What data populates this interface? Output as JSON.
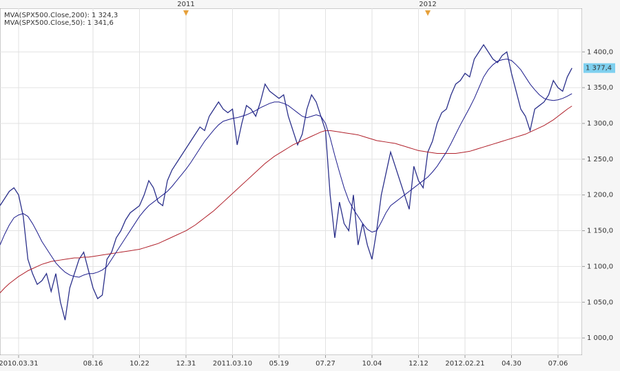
{
  "chart_data": {
    "type": "line",
    "categories": [
      null,
      null,
      null,
      null,
      "2010.03.31",
      null,
      null,
      null,
      null,
      null,
      null,
      null,
      null,
      null,
      null,
      null,
      null,
      null,
      null,
      null,
      "08.16",
      null,
      null,
      null,
      null,
      null,
      null,
      null,
      null,
      null,
      "10.22",
      null,
      null,
      null,
      null,
      null,
      null,
      null,
      null,
      null,
      "12.31",
      null,
      null,
      null,
      null,
      null,
      null,
      null,
      null,
      null,
      "2011.03.10",
      null,
      null,
      null,
      null,
      null,
      null,
      null,
      null,
      null,
      "05.19",
      null,
      null,
      null,
      null,
      null,
      null,
      null,
      null,
      null,
      "07.27",
      null,
      null,
      null,
      null,
      null,
      null,
      null,
      null,
      null,
      "10.04",
      null,
      null,
      null,
      null,
      null,
      null,
      null,
      null,
      null,
      "12.12",
      null,
      null,
      null,
      null,
      null,
      null,
      null,
      null,
      null,
      "2012.02.21",
      null,
      null,
      null,
      null,
      null,
      null,
      null,
      null,
      null,
      "04.30",
      null,
      null,
      null,
      null,
      null,
      null,
      null,
      null,
      null,
      "07.06",
      null,
      null,
      null
    ],
    "top_categories": [
      null,
      null,
      null,
      null,
      null,
      null,
      null,
      null,
      null,
      null,
      null,
      null,
      null,
      null,
      null,
      null,
      null,
      null,
      null,
      null,
      null,
      null,
      null,
      null,
      null,
      null,
      null,
      null,
      null,
      null,
      null,
      null,
      null,
      null,
      null,
      null,
      null,
      null,
      null,
      null,
      "2011",
      null,
      null,
      null,
      null,
      null,
      null,
      null,
      null,
      null,
      null,
      null,
      null,
      null,
      null,
      null,
      null,
      null,
      null,
      null,
      null,
      null,
      null,
      null,
      null,
      null,
      null,
      null,
      null,
      null,
      null,
      null,
      null,
      null,
      null,
      null,
      null,
      null,
      null,
      null,
      null,
      null,
      null,
      null,
      null,
      null,
      null,
      null,
      null,
      null,
      null,
      null,
      "2012",
      null,
      null,
      null,
      null,
      null,
      null,
      null,
      null,
      null,
      null,
      null,
      null,
      null,
      null,
      null,
      null,
      null,
      null,
      null,
      null,
      null,
      null,
      null,
      null,
      null,
      null,
      null,
      null,
      null,
      null,
      null
    ],
    "series": [
      {
        "name": "SPX500",
        "color": "#2a2f8a",
        "last_value_label": "1 377,4",
        "values": [
          1185,
          1195,
          1205,
          1210,
          1200,
          1170,
          1110,
          1090,
          1075,
          1080,
          1090,
          1065,
          1090,
          1050,
          1025,
          1070,
          1090,
          1110,
          1120,
          1095,
          1070,
          1055,
          1060,
          1110,
          1120,
          1140,
          1150,
          1165,
          1175,
          1180,
          1185,
          1200,
          1220,
          1210,
          1190,
          1185,
          1220,
          1235,
          1245,
          1255,
          1265,
          1275,
          1285,
          1295,
          1290,
          1310,
          1320,
          1330,
          1320,
          1315,
          1320,
          1270,
          1300,
          1325,
          1320,
          1310,
          1330,
          1355,
          1345,
          1340,
          1335,
          1340,
          1310,
          1290,
          1270,
          1285,
          1320,
          1340,
          1330,
          1310,
          1290,
          1200,
          1140,
          1190,
          1160,
          1150,
          1200,
          1130,
          1160,
          1130,
          1110,
          1150,
          1200,
          1230,
          1260,
          1240,
          1220,
          1200,
          1180,
          1240,
          1220,
          1210,
          1260,
          1275,
          1300,
          1315,
          1320,
          1340,
          1355,
          1360,
          1370,
          1365,
          1390,
          1400,
          1410,
          1400,
          1390,
          1385,
          1395,
          1400,
          1370,
          1345,
          1320,
          1310,
          1290,
          1320,
          1325,
          1330,
          1340,
          1360,
          1350,
          1345,
          1365,
          1377.4
        ]
      },
      {
        "name": "MVA(SPX500.Close,200): 1 324,3",
        "color": "#b0202a",
        "values": [
          1063,
          1070,
          1076,
          1081,
          1086,
          1090,
          1094,
          1097,
          1100,
          1103,
          1105,
          1107,
          1108,
          1109,
          1110,
          1111,
          1112,
          1112,
          1113,
          1113,
          1114,
          1115,
          1116,
          1117,
          1118,
          1119,
          1120,
          1121,
          1122,
          1123,
          1124,
          1126,
          1128,
          1130,
          1132,
          1135,
          1138,
          1141,
          1144,
          1147,
          1150,
          1154,
          1158,
          1163,
          1168,
          1173,
          1178,
          1184,
          1190,
          1196,
          1202,
          1208,
          1214,
          1220,
          1226,
          1232,
          1238,
          1244,
          1249,
          1254,
          1258,
          1262,
          1266,
          1270,
          1273,
          1276,
          1279,
          1282,
          1285,
          1288,
          1290,
          1290,
          1289,
          1288,
          1287,
          1286,
          1285,
          1284,
          1282,
          1280,
          1278,
          1276,
          1275,
          1274,
          1273,
          1272,
          1270,
          1268,
          1266,
          1264,
          1262,
          1261,
          1260,
          1259,
          1258,
          1258,
          1258,
          1258,
          1258,
          1259,
          1260,
          1261,
          1263,
          1265,
          1267,
          1269,
          1271,
          1273,
          1275,
          1277,
          1279,
          1281,
          1283,
          1285,
          1288,
          1291,
          1294,
          1297,
          1301,
          1305,
          1310,
          1315,
          1320,
          1324.3
        ]
      },
      {
        "name": "MVA(SPX500.Close,50): 1 341,6",
        "color": "#1c1c8c",
        "values": [
          1130,
          1145,
          1158,
          1168,
          1172,
          1174,
          1170,
          1160,
          1148,
          1135,
          1125,
          1115,
          1105,
          1098,
          1092,
          1088,
          1086,
          1085,
          1088,
          1090,
          1090,
          1092,
          1095,
          1100,
          1110,
          1120,
          1130,
          1140,
          1150,
          1160,
          1170,
          1178,
          1185,
          1190,
          1195,
          1200,
          1205,
          1212,
          1220,
          1228,
          1236,
          1245,
          1255,
          1265,
          1275,
          1283,
          1291,
          1298,
          1303,
          1305,
          1307,
          1308,
          1310,
          1312,
          1315,
          1318,
          1322,
          1325,
          1328,
          1330,
          1330,
          1328,
          1325,
          1320,
          1315,
          1310,
          1308,
          1310,
          1312,
          1310,
          1300,
          1280,
          1255,
          1232,
          1210,
          1192,
          1180,
          1170,
          1160,
          1152,
          1148,
          1150,
          1162,
          1175,
          1185,
          1190,
          1195,
          1200,
          1205,
          1210,
          1215,
          1220,
          1225,
          1232,
          1240,
          1250,
          1260,
          1272,
          1285,
          1298,
          1310,
          1322,
          1335,
          1350,
          1365,
          1375,
          1382,
          1387,
          1389,
          1390,
          1388,
          1382,
          1375,
          1365,
          1355,
          1347,
          1340,
          1335,
          1333,
          1332,
          1333,
          1335,
          1338,
          1341.6
        ]
      }
    ],
    "ylim": [
      976,
      1461
    ],
    "yticks": [
      {
        "value": 1000,
        "label": "1 000,0"
      },
      {
        "value": 1050,
        "label": "1 050,0"
      },
      {
        "value": 1100,
        "label": "1 100,0"
      },
      {
        "value": 1150,
        "label": "1 150,0"
      },
      {
        "value": 1200,
        "label": "1 200,0"
      },
      {
        "value": 1250,
        "label": "1 250,0"
      },
      {
        "value": 1300,
        "label": "1 300,0"
      },
      {
        "value": 1350,
        "label": "1 350,0"
      },
      {
        "value": 1400,
        "label": "1 400,0"
      }
    ],
    "grid": true
  }
}
